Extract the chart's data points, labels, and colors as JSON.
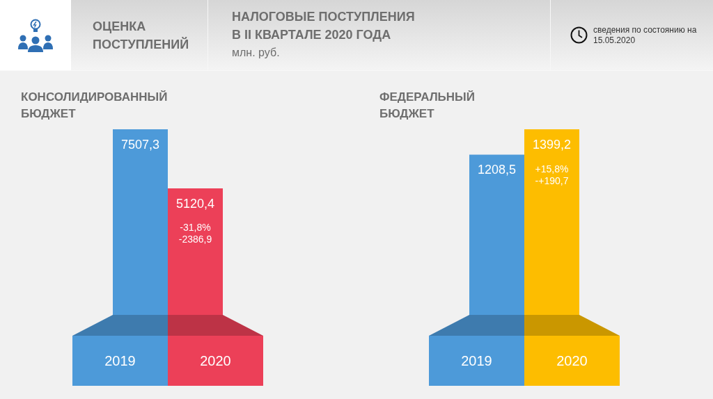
{
  "chart_data": [
    {
      "type": "other",
      "title": "НАЛОГОВЫЕ ПОСТУПЛЕНИЯ В II КВАРТАЛЕ 2020 ГОДА",
      "subtitle": "млн. руб.",
      "annotations": [
        "ОЦЕНКА ПОСТУПЛЕНИЙ",
        "сведения по состоянию на 15.05.2020"
      ]
    },
    {
      "type": "bar",
      "title": "КОНСОЛИДИРОВАННЫЙ БЮДЖЕТ",
      "categories": [
        "2019",
        "2020"
      ],
      "values": [
        7507.3,
        5120.4
      ],
      "colors": [
        "#4d9ad9",
        "#ec4058"
      ],
      "value_labels": [
        "7507,3",
        "5120,4"
      ],
      "annotations": [
        "-31,8%",
        "-2386,9"
      ]
    },
    {
      "type": "bar",
      "title": "ФЕДЕРАЛЬНЫЙ БЮДЖЕТ",
      "categories": [
        "2019",
        "2020"
      ],
      "values": [
        1208.5,
        1399.2
      ],
      "colors": [
        "#4d9ad9",
        "#fdbd00"
      ],
      "value_labels": [
        "1208,5",
        "1399,2"
      ],
      "annotations": [
        "+15,8%",
        "-+190,7"
      ]
    }
  ]
}
